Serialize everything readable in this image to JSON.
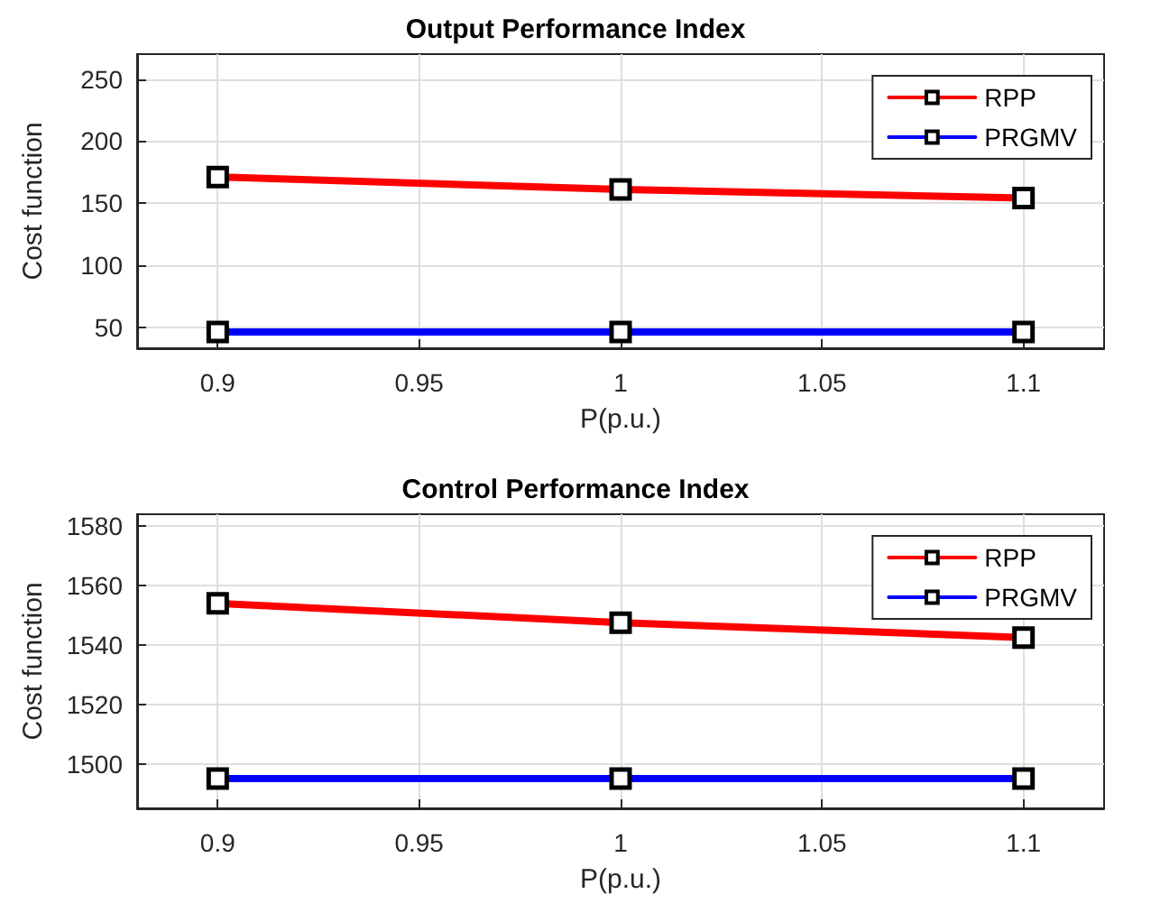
{
  "chart_data": [
    {
      "type": "line",
      "title": "Output Performance Index",
      "xlabel": "P(p.u.)",
      "ylabel": "Cost function",
      "x": [
        0.9,
        1,
        1.1
      ],
      "series": [
        {
          "name": "RPP",
          "color": "#ff0000",
          "values": [
            171,
            161,
            154
          ]
        },
        {
          "name": "PRGMV",
          "color": "#0000ff",
          "values": [
            46,
            46,
            46
          ]
        }
      ],
      "xlim": [
        0.88,
        1.12
      ],
      "xticks": [
        0.9,
        0.95,
        1,
        1.05,
        1.1
      ],
      "ylim": [
        33,
        270
      ],
      "yticks": [
        50,
        100,
        150,
        200,
        250
      ],
      "grid": true,
      "legend": "top right",
      "marker": "square",
      "line_style": "solid"
    },
    {
      "type": "line",
      "title": "Control Performance Index",
      "xlabel": "P(p.u.)",
      "ylabel": "Cost function",
      "x": [
        0.9,
        1,
        1.1
      ],
      "series": [
        {
          "name": "RPP",
          "color": "#ff0000",
          "values": [
            1554,
            1547.5,
            1542.5
          ]
        },
        {
          "name": "PRGMV",
          "color": "#0000ff",
          "values": [
            1495,
            1495,
            1495
          ]
        }
      ],
      "xlim": [
        0.88,
        1.12
      ],
      "xticks": [
        0.9,
        0.95,
        1,
        1.05,
        1.1
      ],
      "ylim": [
        1485,
        1584
      ],
      "yticks": [
        1500,
        1520,
        1540,
        1560,
        1580
      ],
      "grid": true,
      "legend": "top right",
      "marker": "square",
      "line_style": "solid"
    }
  ]
}
